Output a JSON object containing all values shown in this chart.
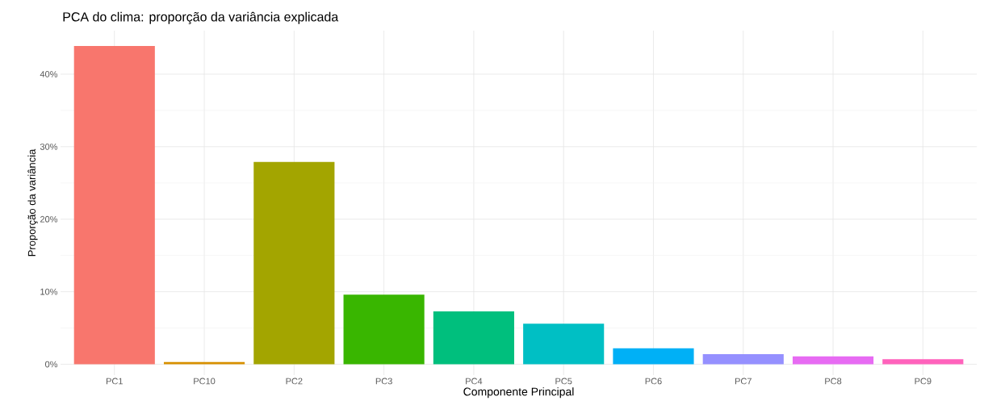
{
  "chart_data": {
    "type": "bar",
    "title": "PCA do clima: proporção da variância explicada",
    "xlabel": "Componente Principal",
    "ylabel": "Proporção da variância",
    "categories": [
      "PC1",
      "PC10",
      "PC2",
      "PC3",
      "PC4",
      "PC5",
      "PC6",
      "PC7",
      "PC8",
      "PC9"
    ],
    "values": [
      43.9,
      0.3,
      27.9,
      9.6,
      7.3,
      5.6,
      2.2,
      1.4,
      1.1,
      0.7
    ],
    "colors": [
      "#f8766d",
      "#d89000",
      "#a3a500",
      "#39b600",
      "#00bf7d",
      "#00bfc4",
      "#00b0f6",
      "#9590ff",
      "#e76bf3",
      "#ff62bc"
    ],
    "ylim": [
      -1.5,
      46
    ],
    "yticks": [
      {
        "value": 0,
        "label": "0%"
      },
      {
        "value": 10,
        "label": "10%"
      },
      {
        "value": 20,
        "label": "20%"
      },
      {
        "value": 30,
        "label": "30%"
      },
      {
        "value": 40,
        "label": "40%"
      }
    ],
    "grid": true
  }
}
